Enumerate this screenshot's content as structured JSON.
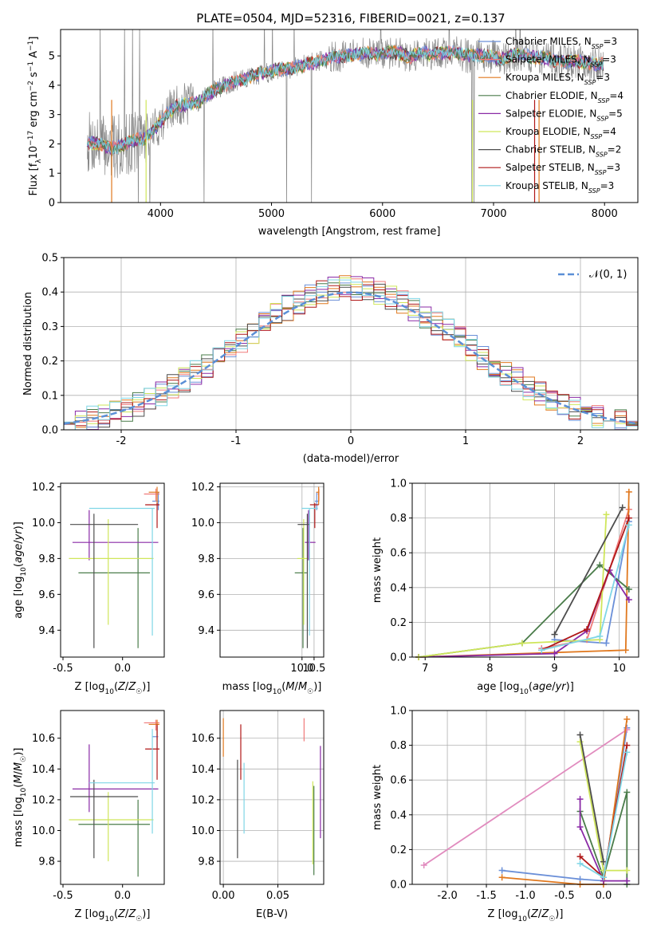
{
  "figure_title": "PLATE=0504, MJD=52316, FIBERID=0021, z=0.137",
  "colors": {
    "Chabrier MILES": "#6a8fd8",
    "Salpeter MILES": "#f07a7a",
    "Kroupa MILES": "#e0781e",
    "Chabrier ELODIE": "#4a7c4a",
    "Salpeter ELODIE": "#8a2aa6",
    "Kroupa ELODIE": "#cfe65a",
    "Chabrier STELIB": "#4d4d4d",
    "Salpeter STELIB": "#b01818",
    "Kroupa STELIB": "#7fd6e6",
    "data": "#888888",
    "normal": "#5b8fd6",
    "pink": "#e18bbe",
    "grid": "#b0b0b0"
  },
  "chart_data": [
    {
      "id": "spectrum",
      "type": "line",
      "xlabel": "wavelength [Angstrom, rest frame]",
      "ylabel_main": "Flux [f",
      "ylabel_sub": "λ",
      "ylabel_mid": "10",
      "ylabel_sup": "−17",
      "ylabel_tail": " erg cm",
      "ylabel_sup2": "−2",
      "ylabel_tail2": " s",
      "ylabel_sup3": "−1",
      "ylabel_tail3": " A",
      "ylabel_sup4": "−1",
      "ylabel_end": "]",
      "xlim": [
        3100,
        8300
      ],
      "ylim": [
        0,
        5.9
      ],
      "xticks": [
        4000,
        5000,
        6000,
        7000,
        8000
      ],
      "yticks": [
        0,
        1,
        2,
        3,
        4,
        5
      ],
      "grid": false,
      "legend_placement": "top-right",
      "legend": [
        {
          "model": "Chabrier MILES",
          "label": "Chabrier MILES, N",
          "n": "=3"
        },
        {
          "model": "Salpeter MILES",
          "label": "Salpeter MILES, N",
          "n": "=3"
        },
        {
          "model": "Kroupa MILES",
          "label": "Kroupa MILES, N",
          "n": "=3"
        },
        {
          "model": "Chabrier ELODIE",
          "label": "Chabrier ELODIE, N",
          "n": "=4"
        },
        {
          "model": "Salpeter ELODIE",
          "label": "Salpeter ELODIE, N",
          "n": "=5"
        },
        {
          "model": "Kroupa ELODIE",
          "label": "Kroupa ELODIE, N",
          "n": "=4"
        },
        {
          "model": "Chabrier STELIB",
          "label": "Chabrier STELIB, N",
          "n": "=2"
        },
        {
          "model": "Salpeter STELIB",
          "label": "Salpeter STELIB, N",
          "n": "=3"
        },
        {
          "model": "Kroupa STELIB",
          "label": "Kroupa STELIB, N",
          "n": "=3"
        }
      ],
      "legend_sub": "SSP",
      "continuum": [
        [
          3350,
          2.05
        ],
        [
          3450,
          2.0
        ],
        [
          3550,
          1.85
        ],
        [
          3650,
          1.95
        ],
        [
          3750,
          2.1
        ],
        [
          3850,
          2.2
        ],
        [
          3950,
          2.5
        ],
        [
          4050,
          3.0
        ],
        [
          4150,
          3.3
        ],
        [
          4250,
          3.35
        ],
        [
          4350,
          3.45
        ],
        [
          4450,
          3.75
        ],
        [
          4550,
          3.95
        ],
        [
          4650,
          4.1
        ],
        [
          4750,
          4.2
        ],
        [
          4850,
          4.35
        ],
        [
          4950,
          4.4
        ],
        [
          5050,
          4.55
        ],
        [
          5150,
          4.55
        ],
        [
          5250,
          4.65
        ],
        [
          5350,
          4.75
        ],
        [
          5450,
          4.85
        ],
        [
          5550,
          4.95
        ],
        [
          5650,
          5.0
        ],
        [
          5750,
          5.05
        ],
        [
          5850,
          5.1
        ],
        [
          5950,
          5.05
        ],
        [
          6050,
          5.1
        ],
        [
          6150,
          5.1
        ],
        [
          6250,
          4.95
        ],
        [
          6350,
          5.15
        ],
        [
          6450,
          5.05
        ],
        [
          6550,
          5.1
        ],
        [
          6650,
          5.15
        ],
        [
          6750,
          5.0
        ],
        [
          6850,
          5.05
        ],
        [
          6950,
          5.0
        ],
        [
          7050,
          4.9
        ],
        [
          7150,
          5.0
        ],
        [
          7250,
          5.05
        ],
        [
          7350,
          4.95
        ],
        [
          7450,
          4.95
        ],
        [
          7550,
          4.85
        ],
        [
          7650,
          4.8
        ],
        [
          7750,
          4.85
        ],
        [
          7850,
          4.75
        ],
        [
          7950,
          4.7
        ]
      ]
    },
    {
      "id": "residuals",
      "type": "histogram",
      "xlabel": "(data-model)/error",
      "ylabel": "Normed distribution",
      "xlim": [
        -2.5,
        2.5
      ],
      "ylim": [
        0,
        0.5
      ],
      "xticks": [
        -2,
        -1,
        0,
        1,
        2
      ],
      "yticks": [
        0.0,
        0.1,
        0.2,
        0.3,
        0.4,
        0.5
      ],
      "grid": true,
      "legend_placement": "top-right",
      "legend": [
        "𝒩(0, 1)"
      ],
      "normal_mean": 0,
      "normal_sigma": 1
    },
    {
      "id": "age_vs_Z",
      "type": "errorbar",
      "xlabel": "Z [log",
      "xlabel_sub": "10",
      "xlabel_tail": "(Z/Z",
      "xlabel_sun": "☉",
      "xlabel_end": ")]",
      "ylabel": "age  [log",
      "ylabel_sub": "10",
      "ylabel_tail": "(age/yr)]",
      "xlim": [
        -0.52,
        0.35
      ],
      "ylim": [
        9.25,
        10.22
      ],
      "xticks": [
        "-0.5",
        "0.0"
      ],
      "xtick_values": [
        -0.5,
        0.0
      ],
      "yticks": [
        "9.4",
        "9.6",
        "9.8",
        "10.0",
        "10.2"
      ],
      "ytick_values": [
        9.4,
        9.6,
        9.8,
        10.0,
        10.2
      ],
      "grid": false,
      "points": [
        {
          "model": "Chabrier MILES",
          "x": 0.3,
          "xerr": [
            0.05,
            0.01
          ],
          "y": 10.12,
          "yerr": [
            0.05,
            0.05
          ]
        },
        {
          "model": "Salpeter MILES",
          "x": 0.28,
          "xerr": [
            0.1,
            0.03
          ],
          "y": 10.16,
          "yerr": [
            0.04,
            0.03
          ]
        },
        {
          "model": "Kroupa MILES",
          "x": 0.29,
          "xerr": [
            0.07,
            0.02
          ],
          "y": 10.17,
          "yerr": [
            0.07,
            0.03
          ]
        },
        {
          "model": "Chabrier ELODIE",
          "x": 0.13,
          "xerr": [
            0.5,
            0.1
          ],
          "y": 9.72,
          "yerr": [
            0.42,
            0.25
          ]
        },
        {
          "model": "Salpeter ELODIE",
          "x": -0.28,
          "xerr": [
            0.14,
            0.58
          ],
          "y": 9.89,
          "yerr": [
            0.1,
            0.18
          ]
        },
        {
          "model": "Kroupa ELODIE",
          "x": -0.12,
          "xerr": [
            0.33,
            0.38
          ],
          "y": 9.8,
          "yerr": [
            0.37,
            0.22
          ]
        },
        {
          "model": "Chabrier STELIB",
          "x": -0.24,
          "xerr": [
            0.2,
            0.37
          ],
          "y": 9.99,
          "yerr": [
            0.69,
            0.06
          ]
        },
        {
          "model": "Salpeter STELIB",
          "x": 0.29,
          "xerr": [
            0.1,
            0.02
          ],
          "y": 10.1,
          "yerr": [
            0.13,
            0.01
          ]
        },
        {
          "model": "Kroupa STELIB",
          "x": 0.25,
          "xerr": [
            0.53,
            0.02
          ],
          "y": 10.08,
          "yerr": [
            0.71,
            0.0
          ]
        }
      ]
    },
    {
      "id": "age_vs_mass",
      "type": "errorbar",
      "xlabel": "mass [log",
      "xlabel_sub": "10",
      "xlabel_tail": "(M/M",
      "xlabel_sun": "☉",
      "xlabel_end": ")]",
      "xlim": [
        6.6,
        10.9
      ],
      "ylim": [
        9.25,
        10.22
      ],
      "xticks": [
        "10.0",
        "10.5"
      ],
      "xtick_values": [
        10.0,
        10.5
      ],
      "yticks": [
        "9.4",
        "9.6",
        "9.8",
        "10.0",
        "10.2"
      ],
      "ytick_values": [
        9.4,
        9.6,
        9.8,
        10.0,
        10.2
      ],
      "grid": true
    },
    {
      "id": "weight_vs_age",
      "type": "line",
      "xlabel": "age  [log",
      "xlabel_sub": "10",
      "xlabel_tail": "(age/yr)]",
      "ylabel": "mass weight",
      "xlim": [
        6.8,
        10.3
      ],
      "ylim": [
        0,
        1
      ],
      "xticks": [
        "7",
        "8",
        "9",
        "10"
      ],
      "xtick_values": [
        7,
        8,
        9,
        10
      ],
      "yticks": [
        "0.0",
        "0.2",
        "0.4",
        "0.6",
        "0.8",
        "1.0"
      ],
      "ytick_values": [
        0,
        0.2,
        0.4,
        0.6,
        0.8,
        1.0
      ],
      "grid": true,
      "series": [
        {
          "model": "Chabrier MILES",
          "x": [
            9.0,
            9.8,
            10.15
          ],
          "y": [
            0.1,
            0.08,
            0.78
          ]
        },
        {
          "model": "Salpeter MILES",
          "x": [
            8.8,
            9.5,
            10.15
          ],
          "y": [
            0.05,
            0.1,
            0.85
          ]
        },
        {
          "model": "Kroupa MILES",
          "x": [
            6.9,
            10.1,
            10.15
          ],
          "y": [
            0.0,
            0.04,
            0.95
          ]
        },
        {
          "model": "Chabrier ELODIE",
          "x": [
            6.9,
            8.5,
            9.7,
            10.15
          ],
          "y": [
            0.0,
            0.08,
            0.53,
            0.39
          ]
        },
        {
          "model": "Salpeter ELODIE",
          "x": [
            6.9,
            9.0,
            9.5,
            9.85,
            10.15
          ],
          "y": [
            0.0,
            0.02,
            0.15,
            0.5,
            0.33
          ]
        },
        {
          "model": "Kroupa ELODIE",
          "x": [
            6.9,
            8.5,
            9.7,
            9.8
          ],
          "y": [
            0.0,
            0.08,
            0.1,
            0.82
          ]
        },
        {
          "model": "Chabrier STELIB",
          "x": [
            9.0,
            10.05
          ],
          "y": [
            0.13,
            0.86
          ]
        },
        {
          "model": "Salpeter STELIB",
          "x": [
            8.8,
            9.5,
            10.15
          ],
          "y": [
            0.04,
            0.16,
            0.8
          ]
        },
        {
          "model": "Kroupa STELIB",
          "x": [
            8.8,
            9.7,
            10.15
          ],
          "y": [
            0.04,
            0.12,
            0.76
          ]
        }
      ]
    },
    {
      "id": "mass_vs_Z",
      "type": "errorbar",
      "xlabel": "Z [log",
      "xlabel_sub": "10",
      "xlabel_tail": "(Z/Z",
      "xlabel_sun": "☉",
      "xlabel_end": ")]",
      "ylabel": "mass [log",
      "ylabel_sub": "10",
      "ylabel_tail": "(M/M",
      "ylabel_sun": "☉",
      "ylabel_end": ")]",
      "xlim": [
        -0.52,
        0.35
      ],
      "ylim": [
        9.65,
        10.78
      ],
      "xticks": [
        "-0.5",
        "0.0"
      ],
      "xtick_values": [
        -0.5,
        0.0
      ],
      "yticks": [
        "9.8",
        "10.0",
        "10.2",
        "10.4",
        "10.6"
      ],
      "ytick_values": [
        9.8,
        10.0,
        10.2,
        10.4,
        10.6
      ],
      "grid": false,
      "points": [
        {
          "model": "Chabrier MILES",
          "x": 0.29,
          "xerr": [
            0.04,
            0.01
          ],
          "y": 10.61,
          "yerr": [
            0.08,
            0.07
          ]
        },
        {
          "model": "Salpeter MILES",
          "x": 0.28,
          "xerr": [
            0.1,
            0.03
          ],
          "y": 10.7,
          "yerr": [
            0.05,
            0.02
          ]
        },
        {
          "model": "Kroupa MILES",
          "x": 0.29,
          "xerr": [
            0.07,
            0.02
          ],
          "y": 10.69,
          "yerr": [
            0.1,
            0.03
          ]
        },
        {
          "model": "Chabrier ELODIE",
          "x": 0.13,
          "xerr": [
            0.5,
            0.1
          ],
          "y": 10.04,
          "yerr": [
            0.34,
            0.16
          ]
        },
        {
          "model": "Salpeter ELODIE",
          "x": -0.28,
          "xerr": [
            0.14,
            0.58
          ],
          "y": 10.27,
          "yerr": [
            0.15,
            0.29
          ]
        },
        {
          "model": "Kroupa ELODIE",
          "x": -0.12,
          "xerr": [
            0.33,
            0.38
          ],
          "y": 10.07,
          "yerr": [
            0.27,
            0.18
          ]
        },
        {
          "model": "Chabrier STELIB",
          "x": -0.24,
          "xerr": [
            0.2,
            0.37
          ],
          "y": 10.22,
          "yerr": [
            0.4,
            0.11
          ]
        },
        {
          "model": "Salpeter STELIB",
          "x": 0.29,
          "xerr": [
            0.1,
            0.02
          ],
          "y": 10.53,
          "yerr": [
            0.2,
            0.16
          ]
        },
        {
          "model": "Kroupa STELIB",
          "x": 0.25,
          "xerr": [
            0.53,
            0.02
          ],
          "y": 10.31,
          "yerr": [
            0.33,
            0.35
          ]
        }
      ]
    },
    {
      "id": "mass_vs_ebv",
      "type": "errorbar",
      "xlabel": "E(B-V)",
      "xlim": [
        -0.003,
        0.092
      ],
      "ylim": [
        9.65,
        10.78
      ],
      "xticks": [
        "0.00",
        "0.05"
      ],
      "xtick_values": [
        0.0,
        0.05
      ],
      "yticks": [
        "9.8",
        "10.0",
        "10.2",
        "10.4",
        "10.6"
      ],
      "ytick_values": [
        9.8,
        10.0,
        10.2,
        10.4,
        10.6
      ],
      "grid": true,
      "points": [
        {
          "model": "Kroupa MILES",
          "x": 0.0,
          "y": 10.6,
          "yerr": [
            0.12,
            0.13
          ]
        },
        {
          "model": "Salpeter STELIB",
          "x": 0.016,
          "y": 10.53,
          "yerr": [
            0.2,
            0.16
          ]
        },
        {
          "model": "Kroupa STELIB",
          "x": 0.019,
          "y": 10.21,
          "yerr": [
            0.23,
            0.23
          ]
        },
        {
          "model": "Chabrier STELIB",
          "x": 0.013,
          "y": 10.09,
          "yerr": [
            0.27,
            0.37
          ]
        },
        {
          "model": "Salpeter MILES",
          "x": 0.074,
          "y": 10.65,
          "yerr": [
            0.07,
            0.08
          ]
        },
        {
          "model": "Kroupa ELODIE",
          "x": 0.082,
          "y": 10.05,
          "yerr": [
            0.27,
            0.27
          ]
        },
        {
          "model": "Chabrier ELODIE",
          "x": 0.083,
          "y": 10.0,
          "yerr": [
            0.29,
            0.29
          ]
        },
        {
          "model": "Salpeter ELODIE",
          "x": 0.089,
          "y": 10.25,
          "yerr": [
            0.3,
            0.3
          ]
        }
      ]
    },
    {
      "id": "weight_vs_Z",
      "type": "line",
      "xlabel": "Z [log",
      "xlabel_sub": "10",
      "xlabel_tail": "(Z/Z",
      "xlabel_sun": "☉",
      "xlabel_end": ")]",
      "ylabel": "mass weight",
      "xlim": [
        -2.45,
        0.45
      ],
      "ylim": [
        0,
        1
      ],
      "xticks": [
        "-2.0",
        "-1.5",
        "-1.0",
        "-0.5",
        "0.0"
      ],
      "xtick_values": [
        -2.0,
        -1.5,
        -1.0,
        -0.5,
        0.0
      ],
      "yticks": [
        "0.0",
        "0.2",
        "0.4",
        "0.6",
        "0.8",
        "1.0"
      ],
      "ytick_values": [
        0,
        0.2,
        0.4,
        0.6,
        0.8,
        1.0
      ],
      "grid": true,
      "series": [
        {
          "model": "Chabrier MILES",
          "x": [
            -1.3,
            -0.3,
            0.0,
            0.3
          ],
          "y": [
            0.08,
            0.03,
            0.02,
            0.9
          ]
        },
        {
          "model": "Salpeter MILES",
          "x": [
            -2.3,
            0.3
          ],
          "y": [
            0.11,
            0.89
          ]
        },
        {
          "model": "Kroupa MILES",
          "x": [
            -1.3,
            -0.3,
            0.0,
            0.3
          ],
          "y": [
            0.04,
            0.0,
            0.0,
            0.95
          ]
        },
        {
          "model": "Chabrier ELODIE",
          "x": [
            -0.3,
            0.0,
            0.3,
            0.3
          ],
          "y": [
            0.42,
            0.04,
            0.53,
            0.0
          ]
        },
        {
          "model": "Salpeter ELODIE",
          "x": [
            -0.3,
            -0.3,
            0.0,
            0.3
          ],
          "y": [
            0.49,
            0.33,
            0.02,
            0.02
          ]
        },
        {
          "model": "Kroupa ELODIE",
          "x": [
            -0.3,
            0.0,
            0.3
          ],
          "y": [
            0.82,
            0.08,
            0.08
          ]
        },
        {
          "model": "Chabrier STELIB",
          "x": [
            -0.3,
            0.0
          ],
          "y": [
            0.86,
            0.13
          ]
        },
        {
          "model": "Salpeter STELIB",
          "x": [
            -0.3,
            0.0,
            0.3
          ],
          "y": [
            0.16,
            0.04,
            0.8
          ]
        },
        {
          "model": "Kroupa STELIB",
          "x": [
            -0.3,
            0.0,
            0.3
          ],
          "y": [
            0.12,
            0.04,
            0.76
          ]
        }
      ]
    }
  ]
}
